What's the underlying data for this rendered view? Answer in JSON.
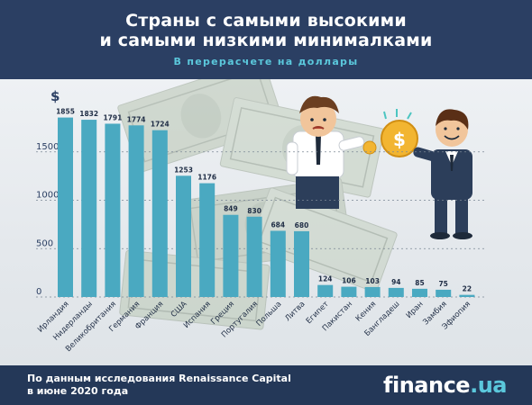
{
  "header": {
    "title_line1": "Страны с самыми высокими",
    "title_line2": "и самыми низкими минималками",
    "subtitle": "В перерасчете на доллары"
  },
  "footer": {
    "note": "По данным исследования Renaissance Capital в июне 2020 года",
    "brand_name": "finance",
    "brand_suffix": ".ua"
  },
  "chart_data": {
    "type": "bar",
    "title": "Страны с самыми высокими и самыми низкими минималками",
    "subtitle": "В перерасчете на доллары",
    "ylabel": "$",
    "ylim": [
      0,
      1900
    ],
    "yticks": [
      0,
      500,
      1000,
      1500
    ],
    "grid": true,
    "categories": [
      "Ирландия",
      "Нидерланды",
      "Великобритания",
      "Германия",
      "Франция",
      "США",
      "Испания",
      "Греция",
      "Португалия",
      "Польша",
      "Литва",
      "Египет",
      "Пакистан",
      "Кения",
      "Бангладеш",
      "Иран",
      "Замбия",
      "Эфиопия"
    ],
    "values": [
      1855,
      1832,
      1791,
      1774,
      1724,
      1253,
      1176,
      849,
      830,
      684,
      680,
      124,
      106,
      103,
      94,
      85,
      75,
      22
    ],
    "bar_color": "#4aa9c1"
  }
}
